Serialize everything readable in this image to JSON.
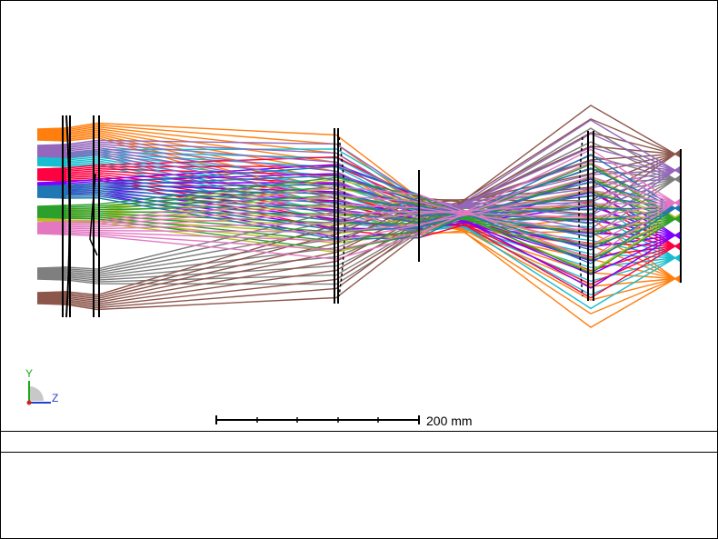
{
  "axes": {
    "y_label": "Y",
    "z_label": "Z"
  },
  "scale_bar": {
    "label": "200 mm"
  },
  "colors": {
    "orange": "#ff7f0e",
    "cyan": "#17becf",
    "red": "#ff0040",
    "violet": "#8000ff",
    "olive": "#bcbd22",
    "gray": "#7f7f7f",
    "brown": "#8c564b",
    "purple": "#9467bd",
    "green": "#2ca02c",
    "blue": "#1f77b4",
    "pink": "#e377c2"
  }
}
